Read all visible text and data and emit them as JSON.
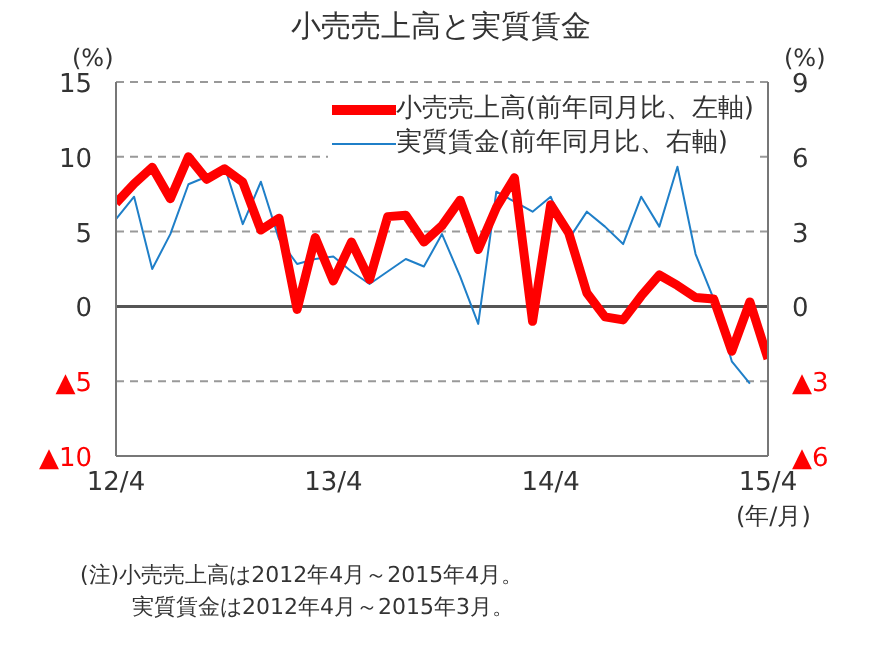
{
  "chart_data": {
    "type": "line",
    "title": "小売売上高と実質賃金",
    "xlabel": "(年/月)",
    "ylabel": "(%)",
    "y2label": "(%)",
    "categories": [
      "12/4",
      null,
      null,
      null,
      null,
      null,
      null,
      null,
      null,
      null,
      null,
      null,
      "13/4",
      null,
      null,
      null,
      null,
      null,
      null,
      null,
      null,
      null,
      null,
      null,
      "14/4",
      null,
      null,
      null,
      null,
      null,
      null,
      null,
      null,
      null,
      null,
      null,
      "15/4"
    ],
    "series": [
      {
        "name": "小売売上高(前年同月比、左軸)",
        "color": "#ff0000",
        "values": [
          6.9,
          8.2,
          9.3,
          7.2,
          10.0,
          8.5,
          9.2,
          8.3,
          5.1,
          5.9,
          -0.2,
          4.6,
          1.7,
          4.3,
          1.8,
          6.0,
          6.1,
          4.3,
          5.4,
          7.1,
          3.8,
          6.6,
          8.6,
          -1.0,
          6.8,
          4.9,
          0.9,
          -0.7,
          -0.9,
          0.7,
          2.1,
          1.4,
          0.6,
          0.5,
          -3.0,
          0.3,
          -3.5
        ]
      },
      {
        "name": "実質賃金(前年同月比、右軸)",
        "color": "#1f7fc8",
        "axis": "y2",
        "values": [
          3.5,
          4.4,
          1.5,
          2.9,
          4.9,
          5.2,
          5.6,
          3.3,
          5.0,
          2.7,
          1.7,
          1.9,
          2.0,
          1.4,
          0.9,
          1.4,
          1.9,
          1.6,
          2.9,
          1.2,
          -0.7,
          4.6,
          4.2,
          3.8,
          4.4,
          2.7,
          3.8,
          3.2,
          2.5,
          4.4,
          3.2,
          5.6,
          2.1,
          0.3,
          -2.2,
          -3.1,
          null
        ]
      }
    ],
    "ylim": [
      -10,
      15
    ],
    "yticks": [
      {
        "value": -10,
        "label": "▲10"
      },
      {
        "value": -5,
        "label": "▲5"
      },
      0,
      5,
      10,
      15
    ],
    "y2lim": [
      -6,
      9
    ],
    "y2ticks": [
      {
        "value": -6,
        "label": "▲6"
      },
      {
        "value": -3,
        "label": "▲3"
      },
      0,
      3,
      6,
      9
    ],
    "grid": "y",
    "legend": "top right",
    "marker": "none",
    "line_style": "solid",
    "ref_lines": [
      {
        "axis": "y",
        "value": 0,
        "color": "#555555",
        "line_style": "solid"
      }
    ],
    "annotations": [
      "(注)小売売上高は2012年4月～2015年4月。",
      "実質賃金は2012年4月～2015年3月。"
    ]
  }
}
